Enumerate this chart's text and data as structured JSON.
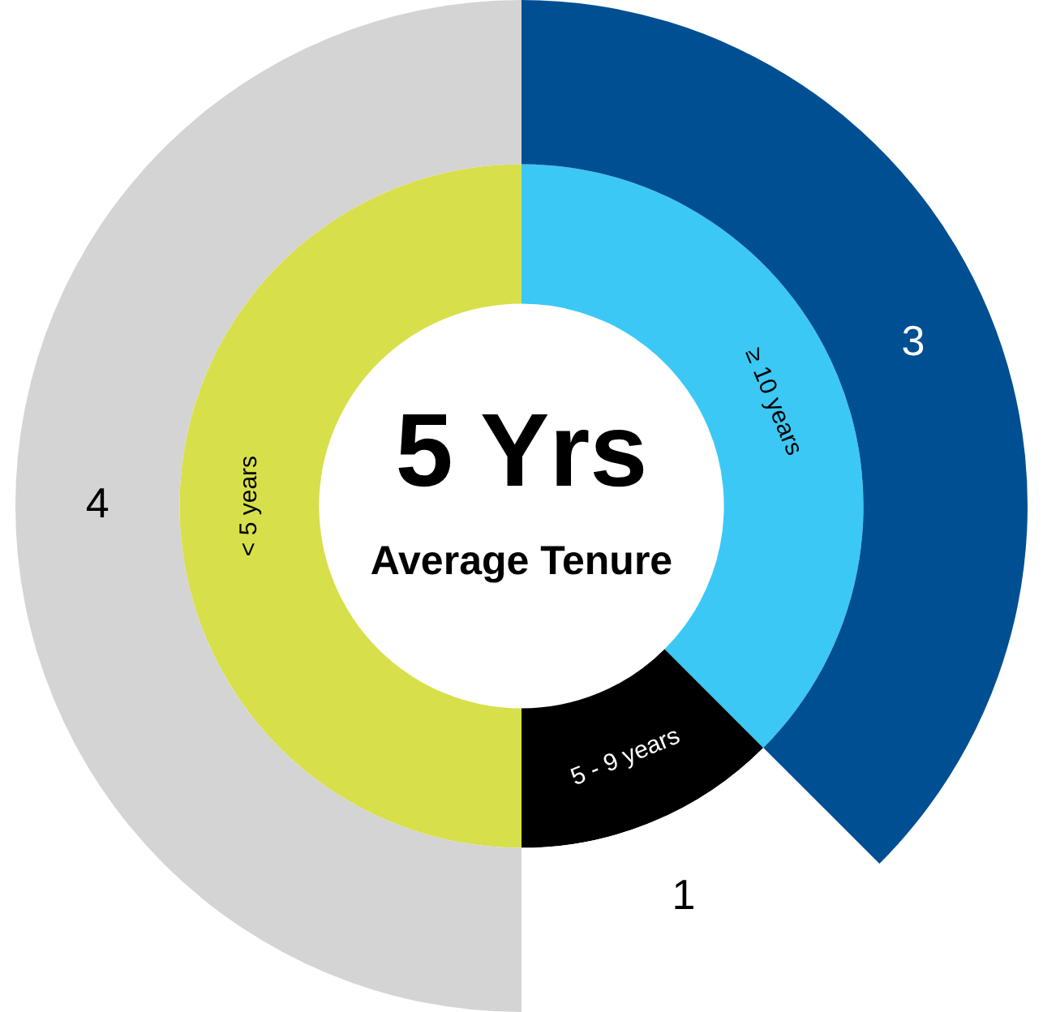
{
  "chart_data": {
    "type": "donut",
    "categories": [
      "≥ 10 years",
      "5 - 9 years",
      "< 5 years"
    ],
    "series": [
      {
        "values": [
          3,
          1,
          4
        ],
        "value_labels": [
          "3",
          "1",
          "4"
        ],
        "colors": [
          "#004f93",
          "#ffffff",
          "#d4d4d4"
        ]
      },
      {
        "values": [
          37.5,
          12.5,
          50
        ],
        "colors": [
          "#3cc8f4",
          "#000000",
          "#d7e04a"
        ]
      }
    ],
    "annotations": [
      "5 Yrs",
      "Average Tenure"
    ]
  }
}
